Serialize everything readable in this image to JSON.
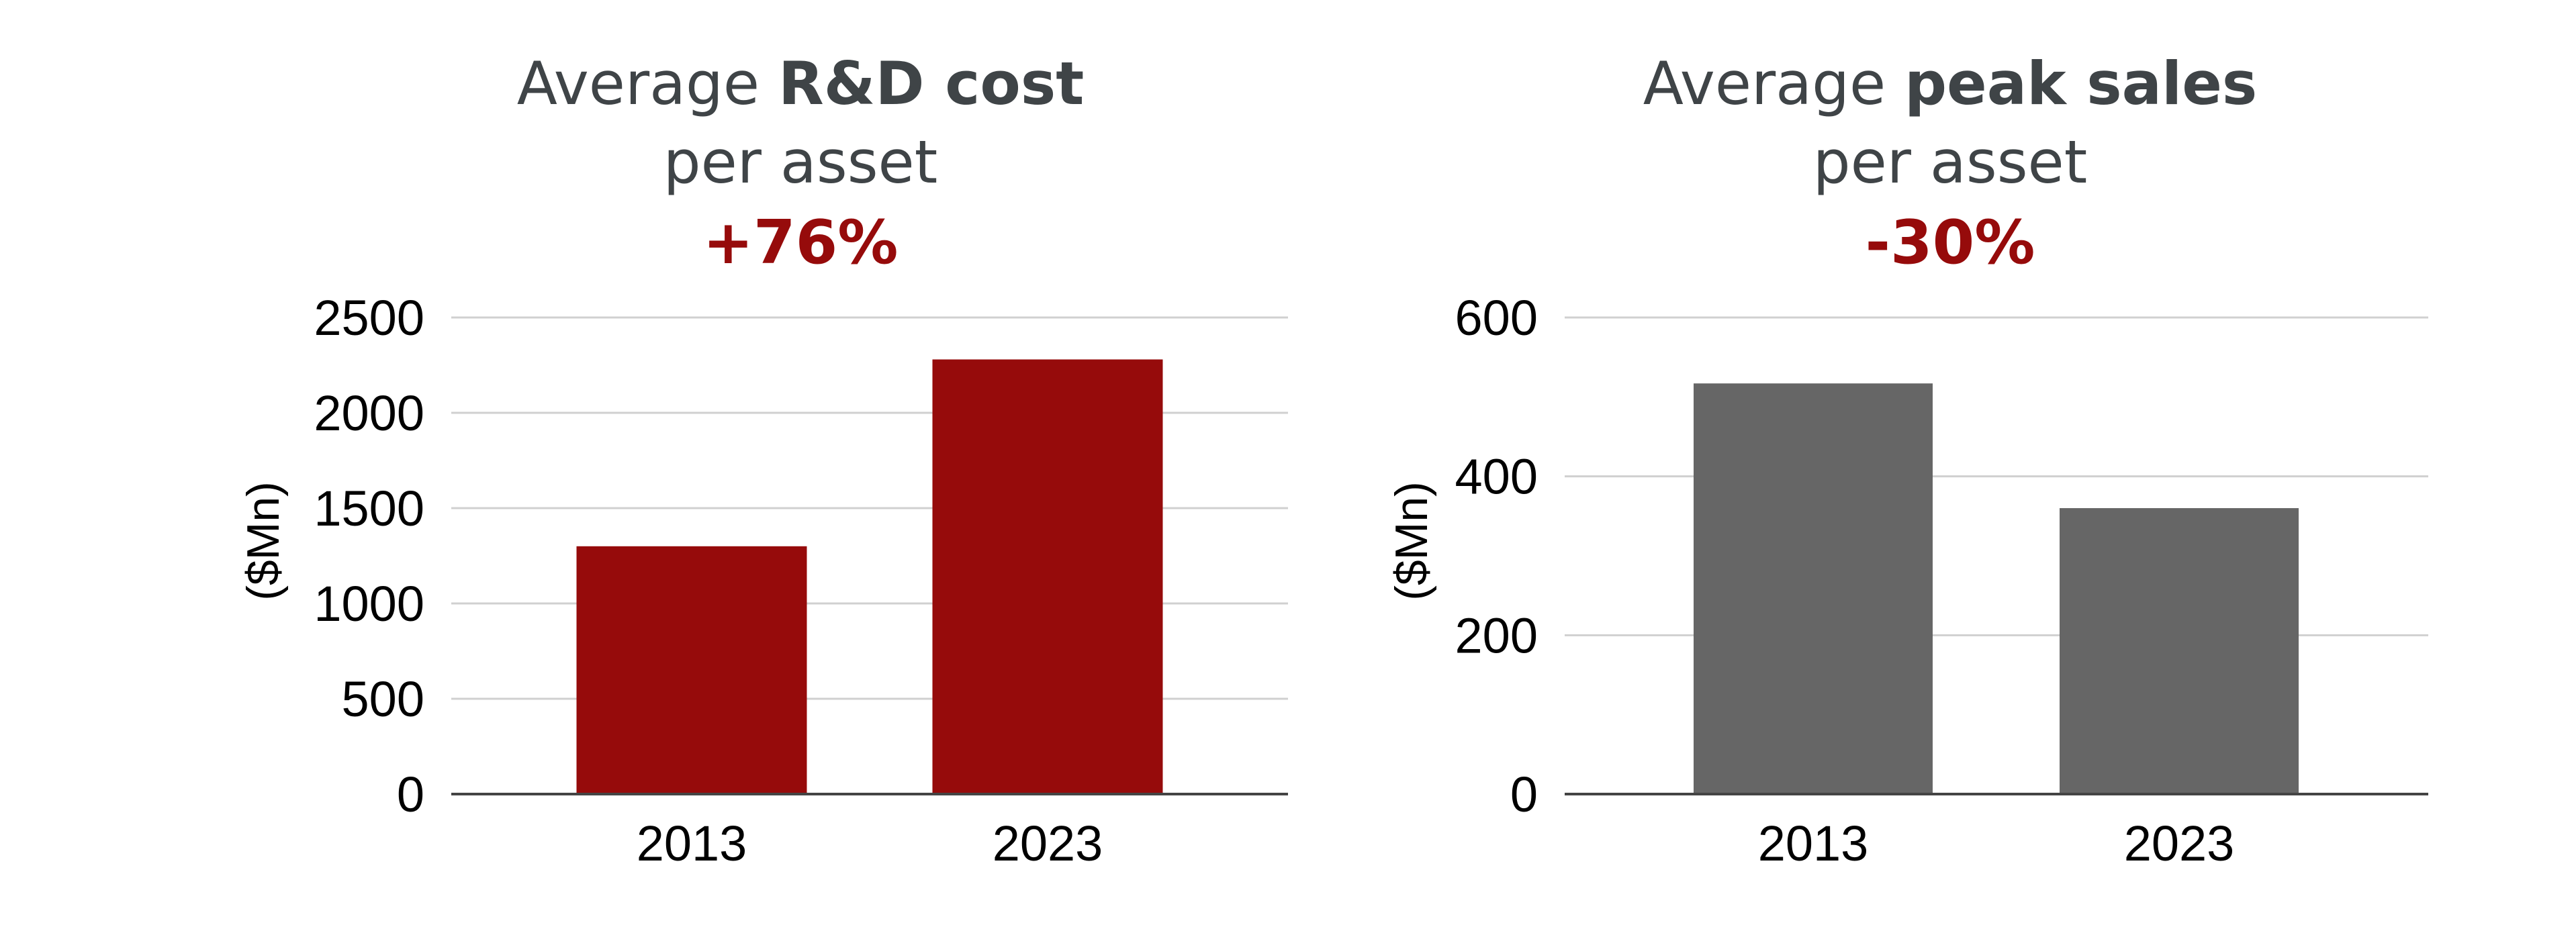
{
  "colors": {
    "cost_bar": "#960b0b",
    "sales_bar": "#666666",
    "change_text": "#960b0b"
  },
  "chart_data": [
    {
      "type": "bar",
      "title": {
        "prefix": "Average ",
        "bold": "R&D cost",
        "line2": "per asset",
        "change": "+76%"
      },
      "categories": [
        "2013",
        "2023"
      ],
      "values": [
        1300,
        2280
      ],
      "ylabel": "($Mn)",
      "ylim": [
        0,
        2500
      ],
      "yticks": [
        0,
        500,
        1000,
        1500,
        2000,
        2500
      ],
      "grid": true,
      "bar_color": "#960b0b"
    },
    {
      "type": "bar",
      "title": {
        "prefix": "Average ",
        "bold": "peak sales",
        "line2": "per asset",
        "change": "-30%"
      },
      "categories": [
        "2013",
        "2023"
      ],
      "values": [
        517,
        360
      ],
      "ylabel": "($Mn)",
      "ylim": [
        0,
        600
      ],
      "yticks": [
        0,
        200,
        400,
        600
      ],
      "grid": true,
      "bar_color": "#666666"
    }
  ]
}
